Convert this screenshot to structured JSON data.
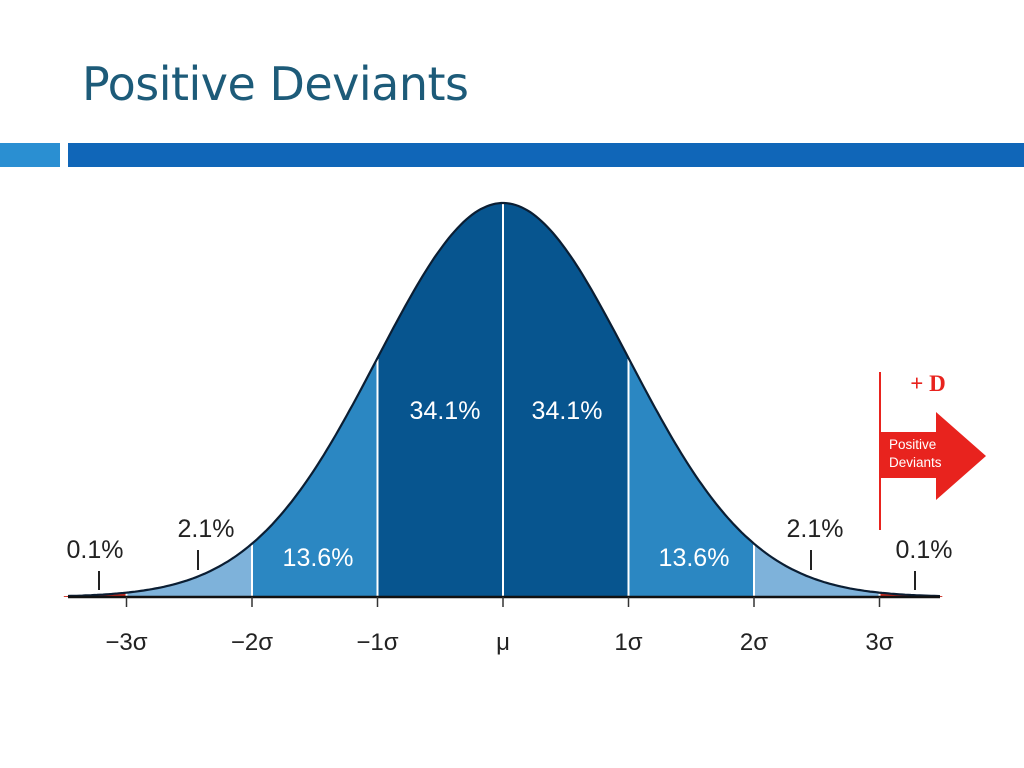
{
  "slide": {
    "title": "Positive Deviants"
  },
  "colors": {
    "title": "#1d5b79",
    "accent_light": "#2a8fd2",
    "accent_dark": "#1066b8",
    "band_center": "#07558f",
    "band_mid": "#2b87c2",
    "band_outer": "#7eb2da",
    "band_tail": "#cc2b1f",
    "callout": "#e8231e"
  },
  "chart_data": {
    "type": "area",
    "title": "",
    "distribution": "normal",
    "mean": 0,
    "sd": 1,
    "xlim": [
      -3.5,
      3.5
    ],
    "ticks": [
      "−3σ",
      "−2σ",
      "−1σ",
      "μ",
      "1σ",
      "2σ",
      "3σ"
    ],
    "tick_values": [
      -3,
      -2,
      -1,
      0,
      1,
      2,
      3
    ],
    "bands": [
      {
        "from": -3.5,
        "to": -3,
        "percent": "0.1%",
        "tier": "tail"
      },
      {
        "from": -3,
        "to": -2,
        "percent": "2.1%",
        "tier": "outer"
      },
      {
        "from": -2,
        "to": -1,
        "percent": "13.6%",
        "tier": "mid"
      },
      {
        "from": -1,
        "to": 0,
        "percent": "34.1%",
        "tier": "center"
      },
      {
        "from": 0,
        "to": 1,
        "percent": "34.1%",
        "tier": "center"
      },
      {
        "from": 1,
        "to": 2,
        "percent": "13.6%",
        "tier": "mid"
      },
      {
        "from": 2,
        "to": 3,
        "percent": "2.1%",
        "tier": "outer"
      },
      {
        "from": 3,
        "to": 3.5,
        "percent": "0.1%",
        "tier": "tail"
      }
    ],
    "callout": {
      "symbol": "+ D",
      "lines": [
        "Positive",
        "Deviants"
      ]
    }
  }
}
